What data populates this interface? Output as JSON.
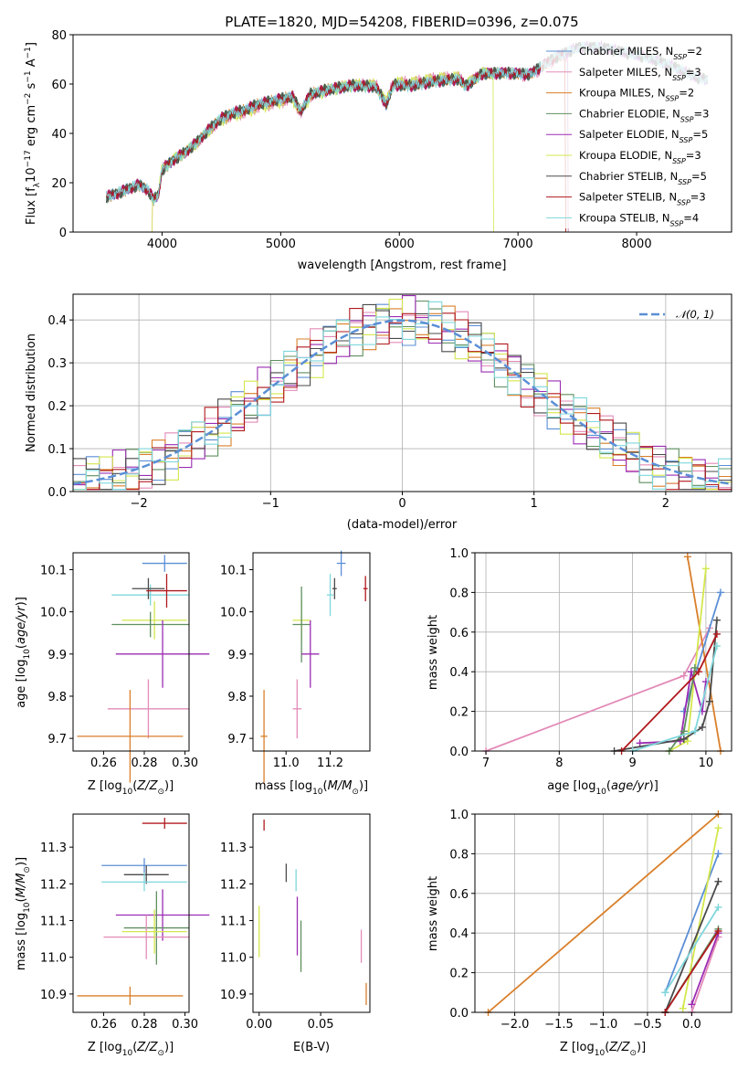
{
  "figure": {
    "title": "PLATE=1820, MJD=54208, FIBERID=0396, z=0.075"
  },
  "colors": {
    "Chabrier MILES": "#5b8fd6",
    "Salpeter MILES": "#e38bb8",
    "Kroupa MILES": "#d97f2a",
    "Chabrier ELODIE": "#5f8f5f",
    "Salpeter ELODIE": "#9b2cb3",
    "Kroupa ELODIE": "#d4e74c",
    "Chabrier STELIB": "#4a4a4a",
    "Salpeter STELIB": "#b0191e",
    "Kroupa STELIB": "#7fd7dc",
    "normal": "#5b8fd6"
  },
  "chart_data": [
    {
      "id": "spectrum",
      "type": "line",
      "title": "PLATE=1820, MJD=54208, FIBERID=0396, z=0.075",
      "xlabel": "wavelength [Angstrom, rest frame]",
      "ylabel": "Flux [f_λ 10^-17 erg cm^-2 s^-1 A^-1]",
      "xlim": [
        3250,
        8800
      ],
      "ylim": [
        0,
        80
      ],
      "xticks": [
        4000,
        5000,
        6000,
        7000,
        8000
      ],
      "yticks": [
        0,
        20,
        40,
        60,
        80
      ],
      "legend_position": "right",
      "legend": [
        "Chabrier MILES, N_SSP=2",
        "Salpeter MILES, N_SSP=3",
        "Kroupa MILES, N_SSP=2",
        "Chabrier ELODIE, N_SSP=3",
        "Salpeter ELODIE, N_SSP=5",
        "Kroupa ELODIE, N_SSP=3",
        "Chabrier STELIB, N_SSP=5",
        "Salpeter STELIB, N_SSP=3",
        "Kroupa STELIB, N_SSP=4"
      ],
      "continuum": [
        [
          3530,
          15
        ],
        [
          3600,
          16
        ],
        [
          3700,
          18
        ],
        [
          3800,
          20
        ],
        [
          3880,
          18
        ],
        [
          3930,
          14
        ],
        [
          3970,
          16
        ],
        [
          4000,
          26
        ],
        [
          4100,
          30
        ],
        [
          4200,
          33
        ],
        [
          4300,
          37
        ],
        [
          4400,
          42
        ],
        [
          4500,
          46
        ],
        [
          4600,
          48
        ],
        [
          4700,
          49
        ],
        [
          4800,
          51
        ],
        [
          4900,
          52
        ],
        [
          5000,
          53
        ],
        [
          5100,
          54
        ],
        [
          5170,
          48
        ],
        [
          5250,
          55
        ],
        [
          5400,
          57
        ],
        [
          5600,
          59
        ],
        [
          5800,
          59
        ],
        [
          5890,
          52
        ],
        [
          5950,
          60
        ],
        [
          6100,
          60
        ],
        [
          6300,
          62
        ],
        [
          6500,
          63
        ],
        [
          6560,
          60
        ],
        [
          6700,
          65
        ],
        [
          6900,
          65
        ],
        [
          7100,
          64
        ],
        [
          7300,
          70
        ],
        [
          7500,
          74
        ],
        [
          7700,
          74
        ],
        [
          7900,
          72
        ],
        [
          8100,
          70
        ],
        [
          8300,
          67
        ],
        [
          8500,
          63
        ],
        [
          8600,
          62
        ]
      ],
      "notes": [
        "Kroupa ELODIE spectrum ends near 6790 Å, dropping to 0",
        "Kroupa MILES and Salpeter STELIB spectra end near 7400 Å, dropping to 0",
        "Kroupa ELODIE and Salpeter MILES spectra start near 3920 Å"
      ]
    },
    {
      "id": "residuals",
      "type": "histogram",
      "xlabel": "(data-model)/error",
      "ylabel": "Normed distribution",
      "xlim": [
        -2.5,
        2.5
      ],
      "ylim": [
        0,
        0.46
      ],
      "xticks": [
        -2,
        -1,
        0,
        1,
        2
      ],
      "yticks": [
        0.0,
        0.1,
        0.2,
        0.3,
        0.4
      ],
      "legend": [
        "𝒩(0, 1)"
      ],
      "legend_position": "top-right",
      "bin_width": 0.1,
      "series_note": "nine step histograms, one per model, scatter around the N(0,1) curve"
    },
    {
      "id": "age-vs-Z",
      "type": "errorbar",
      "xlabel": "Z [log10(Z/Z⊙)]",
      "ylabel": "age  [log10(age/yr)]",
      "xlim": [
        0.245,
        0.302
      ],
      "ylim": [
        9.67,
        10.14
      ],
      "xticks": [
        0.26,
        0.28,
        0.3
      ],
      "yticks": [
        9.7,
        9.8,
        9.9,
        10.0,
        10.1
      ],
      "points": [
        {
          "model": "Chabrier MILES",
          "x": 0.29,
          "xerr": 0.011,
          "y": 10.115,
          "yerr": 0.02
        },
        {
          "model": "Kroupa STELIB",
          "x": 0.283,
          "xerr": 0.019,
          "y": 10.04,
          "yerr": 0.025
        },
        {
          "model": "Chabrier STELIB",
          "x": 0.282,
          "xerr": 0.008,
          "y": 10.055,
          "yerr": 0.025
        },
        {
          "model": "Salpeter STELIB",
          "x": 0.291,
          "xerr": 0.01,
          "y": 10.05,
          "yerr": 0.04
        },
        {
          "model": "Kroupa ELODIE",
          "x": 0.285,
          "xerr": 0.016,
          "y": 9.98,
          "yerr": 0.045
        },
        {
          "model": "Chabrier ELODIE",
          "x": 0.283,
          "xerr": 0.019,
          "y": 9.97,
          "yerr": 0.03
        },
        {
          "model": "Salpeter ELODIE",
          "x": 0.289,
          "xerr": 0.023,
          "y": 9.9,
          "yerr": 0.08
        },
        {
          "model": "Salpeter MILES",
          "x": 0.282,
          "xerr": 0.02,
          "y": 9.77,
          "yerr": 0.07
        },
        {
          "model": "Kroupa MILES",
          "x": 0.273,
          "xerr": 0.026,
          "y": 9.705,
          "yerr": 0.11
        }
      ]
    },
    {
      "id": "age-vs-mass",
      "type": "errorbar",
      "xlabel": "mass [log10(M/M⊙)]",
      "xlim": [
        10.85,
        11.38
      ],
      "ylim": [
        9.67,
        10.14
      ],
      "xticks": [
        11.0,
        11.2
      ],
      "yticks": [
        9.7,
        9.8,
        9.9,
        10.0,
        10.1
      ],
      "points": [
        {
          "model": "Chabrier MILES",
          "x": 11.25,
          "xerr": 0.02,
          "y": 10.115,
          "yerr": 0.03
        },
        {
          "model": "Kroupa STELIB",
          "x": 11.2,
          "xerr": 0.015,
          "y": 10.04,
          "yerr": 0.05
        },
        {
          "model": "Chabrier STELIB",
          "x": 11.22,
          "xerr": 0.01,
          "y": 10.055,
          "yerr": 0.025
        },
        {
          "model": "Salpeter STELIB",
          "x": 11.36,
          "xerr": 0.01,
          "y": 10.055,
          "yerr": 0.03
        },
        {
          "model": "Kroupa ELODIE",
          "x": 11.07,
          "xerr": 0.04,
          "y": 9.98,
          "yerr": 0.05
        },
        {
          "model": "Chabrier ELODIE",
          "x": 11.07,
          "xerr": 0.04,
          "y": 9.97,
          "yerr": 0.09
        },
        {
          "model": "Salpeter ELODIE",
          "x": 11.11,
          "xerr": 0.04,
          "y": 9.9,
          "yerr": 0.08
        },
        {
          "model": "Salpeter MILES",
          "x": 11.05,
          "xerr": 0.02,
          "y": 9.77,
          "yerr": 0.07
        },
        {
          "model": "Kroupa MILES",
          "x": 10.9,
          "xerr": 0.015,
          "y": 9.705,
          "yerr": 0.11
        }
      ]
    },
    {
      "id": "mass-weight-vs-age",
      "type": "line",
      "xlabel": "age  [log10(age/yr)]",
      "ylabel": "mass weight",
      "xlim": [
        6.85,
        10.35
      ],
      "ylim": [
        0,
        1
      ],
      "xticks": [
        7,
        8,
        9,
        10
      ],
      "yticks": [
        0.0,
        0.2,
        0.4,
        0.6,
        0.8,
        1.0
      ],
      "series": [
        {
          "model": "Salpeter MILES",
          "x": [
            7.0,
            9.7,
            10.05
          ],
          "y": [
            0.0,
            0.38,
            0.62
          ]
        },
        {
          "model": "Kroupa MILES",
          "x": [
            9.75,
            10.2
          ],
          "y": [
            0.98,
            0.0
          ]
        },
        {
          "model": "Chabrier MILES",
          "x": [
            9.7,
            10.2
          ],
          "y": [
            0.2,
            0.8
          ]
        },
        {
          "model": "Kroupa ELODIE",
          "x": [
            9.5,
            9.75,
            10.0
          ],
          "y": [
            0.0,
            0.05,
            0.92
          ]
        },
        {
          "model": "Salpeter ELODIE",
          "x": [
            9.1,
            9.65,
            9.8,
            9.95,
            10.0
          ],
          "y": [
            0.04,
            0.05,
            0.4,
            0.2,
            0.35
          ]
        },
        {
          "model": "Chabrier ELODIE",
          "x": [
            9.5,
            9.7,
            9.85
          ],
          "y": [
            0.0,
            0.1,
            0.42
          ]
        },
        {
          "model": "Chabrier STELIB",
          "x": [
            8.75,
            9.7,
            9.95,
            10.05,
            10.15
          ],
          "y": [
            0.0,
            0.06,
            0.12,
            0.25,
            0.66
          ]
        },
        {
          "model": "Salpeter STELIB",
          "x": [
            8.85,
            9.9,
            10.15
          ],
          "y": [
            0.0,
            0.4,
            0.59
          ]
        },
        {
          "model": "Kroupa STELIB",
          "x": [
            9.0,
            9.85,
            10.15
          ],
          "y": [
            0.0,
            0.1,
            0.53
          ]
        }
      ]
    },
    {
      "id": "mass-vs-Z",
      "type": "errorbar",
      "xlabel": "Z [log10(Z/Z⊙)]",
      "ylabel": "mass [log10(M/M⊙)]",
      "xlim": [
        0.245,
        0.302
      ],
      "ylim": [
        10.85,
        11.39
      ],
      "xticks": [
        0.26,
        0.28,
        0.3
      ],
      "yticks": [
        10.9,
        11.0,
        11.1,
        11.2,
        11.3
      ],
      "points": [
        {
          "model": "Salpeter STELIB",
          "x": 0.29,
          "xerr": 0.011,
          "y": 11.365,
          "yerr": 0.015
        },
        {
          "model": "Chabrier MILES",
          "x": 0.28,
          "xerr": 0.021,
          "y": 11.25,
          "yerr": 0.02
        },
        {
          "model": "Chabrier STELIB",
          "x": 0.281,
          "xerr": 0.011,
          "y": 11.225,
          "yerr": 0.025
        },
        {
          "model": "Kroupa STELIB",
          "x": 0.28,
          "xerr": 0.021,
          "y": 11.205,
          "yerr": 0.025
        },
        {
          "model": "Salpeter ELODIE",
          "x": 0.289,
          "xerr": 0.023,
          "y": 11.115,
          "yerr": 0.07
        },
        {
          "model": "Chabrier ELODIE",
          "x": 0.286,
          "xerr": 0.016,
          "y": 11.08,
          "yerr": 0.1
        },
        {
          "model": "Salpeter MILES",
          "x": 0.281,
          "xerr": 0.021,
          "y": 11.055,
          "yerr": 0.06
        },
        {
          "model": "Kroupa ELODIE",
          "x": 0.285,
          "xerr": 0.016,
          "y": 11.07,
          "yerr": 0.06
        },
        {
          "model": "Kroupa MILES",
          "x": 0.273,
          "xerr": 0.026,
          "y": 10.895,
          "yerr": 0.025
        }
      ]
    },
    {
      "id": "mass-vs-EBV",
      "type": "errorbar",
      "xlabel": "E(B-V)",
      "xlim": [
        -0.005,
        0.09
      ],
      "ylim": [
        10.85,
        11.39
      ],
      "xticks": [
        0.0,
        0.05
      ],
      "yticks": [
        10.9,
        11.0,
        11.1,
        11.2,
        11.3
      ],
      "points": [
        {
          "model": "Salpeter STELIB",
          "x": 0.004,
          "y": 11.36,
          "yerr": 0.015
        },
        {
          "model": "Chabrier STELIB",
          "x": 0.022,
          "y": 11.23,
          "yerr": 0.025
        },
        {
          "model": "Kroupa STELIB",
          "x": 0.03,
          "y": 11.21,
          "yerr": 0.03
        },
        {
          "model": "Salpeter ELODIE",
          "x": 0.031,
          "y": 11.085,
          "yerr": 0.08
        },
        {
          "model": "Chabrier ELODIE",
          "x": 0.034,
          "y": 11.03,
          "yerr": 0.07
        },
        {
          "model": "Kroupa ELODIE",
          "x": 0.0,
          "y": 11.07,
          "yerr": 0.07
        },
        {
          "model": "Salpeter MILES",
          "x": 0.083,
          "y": 11.03,
          "yerr": 0.045
        },
        {
          "model": "Kroupa MILES",
          "x": 0.087,
          "y": 10.9,
          "yerr": 0.03
        }
      ]
    },
    {
      "id": "mass-weight-vs-Z",
      "type": "line",
      "xlabel": "Z [log10(Z/Z⊙)]",
      "ylabel": "mass weight",
      "xlim": [
        -2.45,
        0.45
      ],
      "ylim": [
        0,
        1
      ],
      "xticks": [
        -2.0,
        -1.5,
        -1.0,
        -0.5,
        0.0
      ],
      "yticks": [
        0.0,
        0.2,
        0.4,
        0.6,
        0.8,
        1.0
      ],
      "series": [
        {
          "model": "Kroupa MILES",
          "x": [
            -2.3,
            0.3
          ],
          "y": [
            0.0,
            1.0
          ]
        },
        {
          "model": "Chabrier MILES",
          "x": [
            -0.3,
            0.3
          ],
          "y": [
            0.1,
            0.8
          ]
        },
        {
          "model": "Salpeter MILES",
          "x": [
            0.0,
            0.3
          ],
          "y": [
            0.0,
            0.38
          ]
        },
        {
          "model": "Chabrier ELODIE",
          "x": [
            -0.3,
            0.3
          ],
          "y": [
            0.0,
            0.42
          ]
        },
        {
          "model": "Salpeter ELODIE",
          "x": [
            0.0,
            0.3
          ],
          "y": [
            0.04,
            0.4
          ]
        },
        {
          "model": "Kroupa ELODIE",
          "x": [
            -0.1,
            0.3
          ],
          "y": [
            0.02,
            0.93
          ]
        },
        {
          "model": "Chabrier STELIB",
          "x": [
            -0.3,
            0.3
          ],
          "y": [
            0.0,
            0.66
          ]
        },
        {
          "model": "Salpeter STELIB",
          "x": [
            -0.3,
            0.3
          ],
          "y": [
            0.0,
            0.41
          ]
        },
        {
          "model": "Kroupa STELIB",
          "x": [
            -0.3,
            0.3
          ],
          "y": [
            0.1,
            0.53
          ]
        }
      ]
    }
  ]
}
